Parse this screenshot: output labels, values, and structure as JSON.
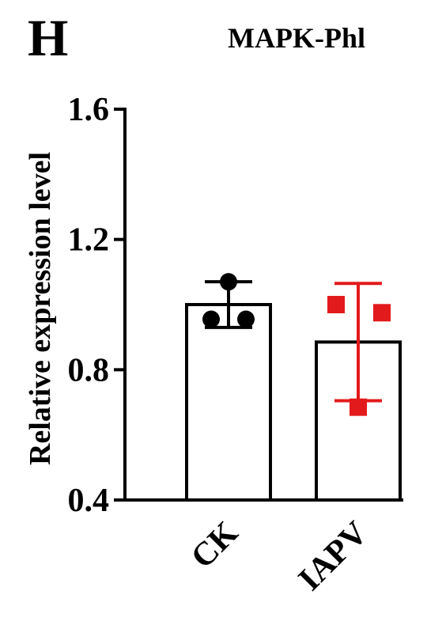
{
  "panel_label": "H",
  "chart_data": {
    "type": "bar",
    "title": "MAPK-Phl",
    "ylabel": "Relative expression level",
    "xlabel": "",
    "ylim": [
      0.4,
      1.6
    ],
    "yticks": [
      "0.4",
      "0.8",
      "1.2",
      "1.6"
    ],
    "categories": [
      "CK",
      "IAPV"
    ],
    "values": [
      1.0,
      0.885
    ],
    "error": [
      0.07,
      0.18
    ],
    "points": [
      [
        1.07,
        0.955,
        0.955
      ],
      [
        1.0,
        0.975,
        0.685
      ]
    ],
    "colors": [
      "#000000",
      "#e31a1c"
    ],
    "markers": [
      "circle",
      "square"
    ],
    "grid": false,
    "legend": "none"
  }
}
